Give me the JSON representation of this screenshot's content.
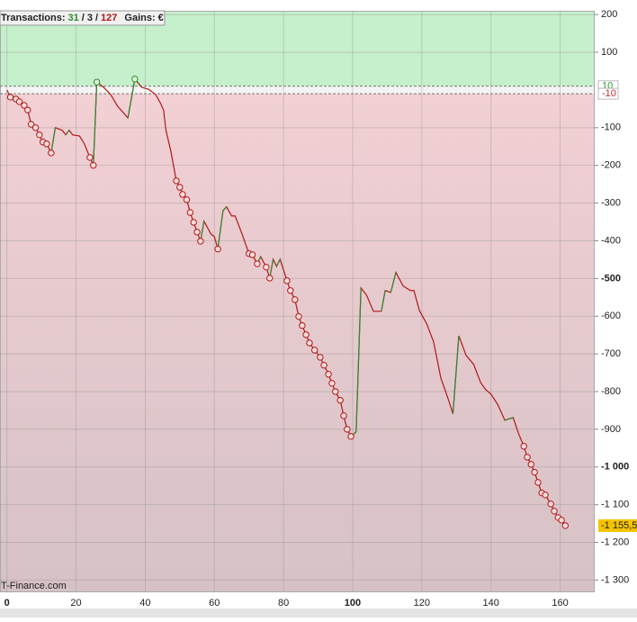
{
  "chart_data": {
    "type": "line",
    "header": {
      "label": "Transactions:",
      "winners": "31",
      "separator": "/",
      "neutral": "3",
      "losers": "127",
      "gains": "Gains: €"
    },
    "footer": "T-Finance.com",
    "x": [
      0,
      1,
      2.6,
      3.6,
      5,
      6,
      7,
      8.3,
      9.4,
      10.4,
      11.5,
      12.8,
      14,
      16,
      17,
      18,
      19,
      21,
      22.4,
      24,
      25,
      26,
      28,
      30,
      32,
      35,
      37,
      39,
      41,
      43,
      44.3,
      45.3,
      46,
      47.4,
      49,
      50,
      50.8,
      52,
      53,
      54,
      55,
      56,
      57,
      59,
      60,
      61,
      62.5,
      63.5,
      65,
      66,
      68,
      70,
      71,
      72.4,
      73.4,
      75,
      76,
      77,
      78,
      79,
      81,
      82,
      83.3,
      84.4,
      85.4,
      86.5,
      87.5,
      89,
      90.6,
      91.7,
      93,
      94,
      95,
      96.4,
      97.4,
      98.4,
      99.5,
      101,
      102.4,
      104,
      106,
      108.3,
      109.4,
      111,
      112.5,
      114.6,
      116.7,
      117.7,
      119.3,
      121.4,
      123.4,
      125.5,
      127.6,
      129,
      130.7,
      132.8,
      135,
      137,
      138.5,
      140,
      142,
      144,
      146.4,
      148,
      149.5,
      150.5,
      151.6,
      152.6,
      153.6,
      154.7,
      155.7,
      157.3,
      158.3,
      159.4,
      160.4,
      161.5
    ],
    "series": [
      {
        "color": "#b01818",
        "up_color": "#2e8b2e",
        "values": [
          0,
          -19,
          -24,
          -31,
          -41,
          -53,
          -91,
          -100,
          -119,
          -138,
          -143,
          -167,
          -100,
          -107,
          -119,
          -107,
          -119,
          -122,
          -143,
          -179,
          -200,
          21,
          7,
          -12,
          -43,
          -74,
          29,
          7,
          2,
          -12,
          -33,
          -53,
          -107,
          -162,
          -241,
          -258,
          -277,
          -291,
          -325,
          -351,
          -377,
          -401,
          -348,
          -382,
          -389,
          -422,
          -320,
          -310,
          -334,
          -334,
          -382,
          -434,
          -437,
          -461,
          -442,
          -470,
          -499,
          -449,
          -468,
          -449,
          -506,
          -532,
          -556,
          -601,
          -625,
          -649,
          -671,
          -690,
          -709,
          -730,
          -754,
          -778,
          -800,
          -823,
          -864,
          -900,
          -919,
          -907,
          -525,
          -544,
          -587,
          -587,
          -532,
          -537,
          -484,
          -520,
          -532,
          -532,
          -585,
          -620,
          -668,
          -764,
          -819,
          -859,
          -652,
          -704,
          -728,
          -776,
          -795,
          -807,
          -835,
          -876,
          -869,
          -912,
          -945,
          -974,
          -993,
          -1014,
          -1041,
          -1069,
          -1074,
          -1098,
          -1117,
          -1134,
          -1141,
          -1155.5
        ]
      }
    ],
    "markers": {
      "x": [
        1,
        2.6,
        3.6,
        5,
        6,
        7,
        8.3,
        9.4,
        10.4,
        11.5,
        12.8,
        24,
        25,
        26,
        37,
        49,
        50,
        50.8,
        52,
        53,
        54,
        55,
        56,
        61,
        70,
        71,
        72.4,
        75,
        76,
        81,
        82,
        83.3,
        84.4,
        85.4,
        86.5,
        87.5,
        89,
        90.6,
        91.7,
        93,
        94,
        95,
        96.4,
        97.4,
        98.4,
        99.5,
        149.5,
        150.5,
        151.6,
        152.6,
        153.6,
        154.7,
        155.7,
        157.3,
        158.3,
        159.4,
        160.4,
        161.5
      ],
      "values": [
        -19,
        -24,
        -31,
        -41,
        -53,
        -91,
        -100,
        -119,
        -138,
        -143,
        -167,
        -179,
        -200,
        21,
        29,
        -241,
        -258,
        -277,
        -291,
        -325,
        -351,
        -377,
        -401,
        -422,
        -434,
        -437,
        -461,
        -470,
        -499,
        -506,
        -532,
        -556,
        -601,
        -625,
        -649,
        -671,
        -690,
        -709,
        -730,
        -754,
        -778,
        -800,
        -823,
        -864,
        -900,
        -919,
        -945,
        -974,
        -993,
        -1014,
        -1041,
        -1069,
        -1074,
        -1098,
        -1117,
        -1134,
        -1141,
        -1155.5
      ]
    },
    "thresholds": [
      {
        "value": 10,
        "color": "#2a9a2a"
      },
      {
        "value": -10,
        "color": "#c03030"
      }
    ],
    "last_label": {
      "value": -1155.5,
      "label": "-1 155,5"
    },
    "xlim": [
      -2,
      170
    ],
    "ylim": [
      -1330,
      210
    ],
    "xticks": [
      0,
      20,
      40,
      60,
      80,
      100,
      120,
      140,
      160
    ],
    "yticks": [
      200,
      100,
      -100,
      -200,
      -300,
      -400,
      -500,
      -600,
      -700,
      -800,
      -900,
      {
        "value": -1000,
        "label": "-1 000"
      },
      {
        "value": -1100,
        "label": "-1 100"
      },
      {
        "value": -1200,
        "label": "-1 200"
      },
      {
        "value": -1300,
        "label": "-1 300"
      }
    ],
    "grid": true
  }
}
